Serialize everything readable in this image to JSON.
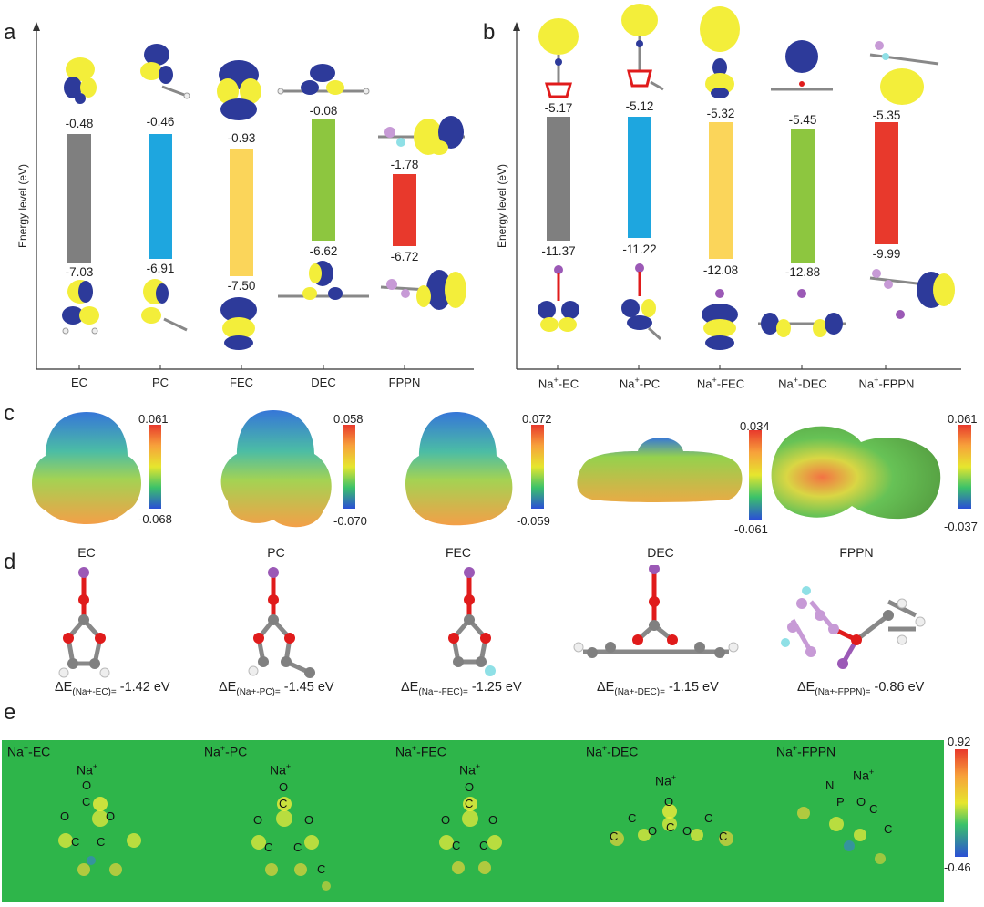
{
  "panels": {
    "a": {
      "letter": "a",
      "ylabel": "Energy level (eV)",
      "molecules": [
        {
          "label": "EC",
          "lumo": "-0.48",
          "homo": "-7.03",
          "color": "#7f7f7f"
        },
        {
          "label": "PC",
          "lumo": "-0.46",
          "homo": "-6.91",
          "color": "#1ea6df"
        },
        {
          "label": "FEC",
          "lumo": "-0.93",
          "homo": "-7.50",
          "color": "#fbd55a"
        },
        {
          "label": "DEC",
          "lumo": "-0.08",
          "homo": "-6.62",
          "color": "#8dc63f"
        },
        {
          "label": "FPPN",
          "lumo": "-1.78",
          "homo": "-6.72",
          "color": "#e8392c"
        }
      ]
    },
    "b": {
      "letter": "b",
      "ylabel": "Energy level (eV)",
      "molecules": [
        {
          "label_pre": "Na",
          "label_sup": "+",
          "label_post": "-EC",
          "lumo": "-5.17",
          "homo": "-11.37",
          "color": "#7f7f7f"
        },
        {
          "label_pre": "Na",
          "label_sup": "+",
          "label_post": "-PC",
          "lumo": "-5.12",
          "homo": "-11.22",
          "color": "#1ea6df"
        },
        {
          "label_pre": "Na",
          "label_sup": "+",
          "label_post": "-FEC",
          "lumo": "-5.32",
          "homo": "-12.08",
          "color": "#fbd55a"
        },
        {
          "label_pre": "Na",
          "label_sup": "+",
          "label_post": "-DEC",
          "lumo": "-5.45",
          "homo": "-12.88",
          "color": "#8dc63f"
        },
        {
          "label_pre": "Na",
          "label_sup": "+",
          "label_post": "-FPPN",
          "lumo": "-5.35",
          "homo": "-9.99",
          "color": "#e8392c"
        }
      ]
    },
    "c": {
      "letter": "c",
      "items": [
        {
          "name": "EC",
          "max": "0.061",
          "min": "-0.068"
        },
        {
          "name": "PC",
          "max": "0.058",
          "min": "-0.070"
        },
        {
          "name": "FEC",
          "max": "0.072",
          "min": "-0.059"
        },
        {
          "name": "DEC",
          "max": "0.034",
          "min": "-0.061"
        },
        {
          "name": "FPPN",
          "max": "0.061",
          "min": "-0.037"
        }
      ]
    },
    "d": {
      "letter": "d",
      "items": [
        {
          "pre": "ΔE",
          "sub": "(Na+-EC)=",
          "val": " -1.42 eV"
        },
        {
          "pre": "ΔE",
          "sub": "(Na+-PC)=",
          "val": " -1.45 eV"
        },
        {
          "pre": "ΔE",
          "sub": "(Na+-FEC)=",
          "val": " -1.25 eV"
        },
        {
          "pre": "ΔE",
          "sub": "(Na+-DEC)=",
          "val": " -1.15 eV"
        },
        {
          "pre": "ΔE",
          "sub": "(Na+-FPPN)=",
          "val": " -0.86 eV"
        }
      ]
    },
    "e": {
      "letter": "e",
      "colorbar_max": "0.92",
      "colorbar_min": "-0.46",
      "maps": [
        {
          "title_pre": "Na",
          "title_sup": "+",
          "title_post": "-EC",
          "na": "Na",
          "na_sup": "+",
          "atoms": [
            "O",
            "C",
            "O",
            "O",
            "C",
            "C"
          ]
        },
        {
          "title_pre": "Na",
          "title_sup": "+",
          "title_post": "-PC",
          "na": "Na",
          "na_sup": "+",
          "atoms": [
            "O",
            "C",
            "O",
            "O",
            "C",
            "C",
            "C"
          ]
        },
        {
          "title_pre": "Na",
          "title_sup": "+",
          "title_post": "-FEC",
          "na": "Na",
          "na_sup": "+",
          "atoms": [
            "O",
            "C",
            "O",
            "O",
            "C",
            "C"
          ]
        },
        {
          "title_pre": "Na",
          "title_sup": "+",
          "title_post": "-DEC",
          "na": "Na",
          "na_sup": "+",
          "atoms": [
            "O",
            "C",
            "C",
            "O",
            "C",
            "O",
            "C",
            "C"
          ]
        },
        {
          "title_pre": "Na",
          "title_sup": "+",
          "title_post": "-FPPN",
          "na": "Na",
          "na_sup": "+",
          "atoms": [
            "N",
            "P",
            "O",
            "C",
            "C"
          ]
        }
      ]
    }
  },
  "colors": {
    "orbital_yellow": "#f3ee3a",
    "orbital_blue": "#2d3a9a",
    "atom_carbon": "#808080",
    "atom_oxygen": "#e01b1b",
    "atom_sodium": "#9b59b6",
    "atom_fluorine": "#8fe0e6",
    "atom_phosphorus": "#c79ad6",
    "atom_hydrogen": "#f0f0f0",
    "map_green": "#2eb54a"
  }
}
